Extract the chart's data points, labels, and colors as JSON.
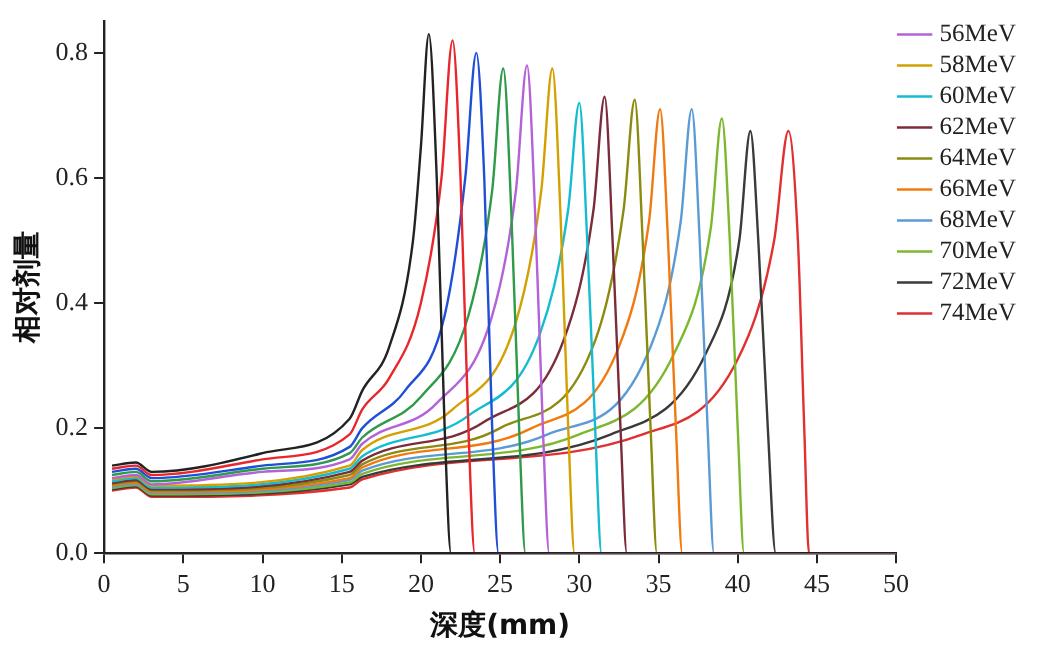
{
  "chart_data": {
    "type": "line",
    "xlabel": "深度(mm)",
    "ylabel": "相对剂量",
    "xlim": [
      0,
      50
    ],
    "xticks": [
      0,
      5,
      10,
      15,
      20,
      25,
      30,
      35,
      40,
      45,
      50
    ],
    "ylim": [
      0,
      0.85
    ],
    "yticks": [
      {
        "value": 0,
        "label": "0.0"
      },
      0.2,
      0.4,
      0.6,
      0.8
    ],
    "grid": false,
    "legend": "top right",
    "marker": "none",
    "line_style": "solid",
    "series": [
      {
        "color": "#222222",
        "x": [
          0.5,
          2,
          3,
          10,
          15.5,
          16.3,
          18,
          19.5,
          20,
          20.5,
          21,
          21.5,
          21.9,
          50
        ],
        "values": [
          0.14,
          0.145,
          0.13,
          0.16,
          0.215,
          0.26,
          0.33,
          0.5,
          0.65,
          0.83,
          0.6,
          0.2,
          0,
          0
        ]
      },
      {
        "color": "#e8262b",
        "x": [
          0.5,
          2,
          3,
          10,
          15.5,
          16.3,
          18,
          20,
          21.3,
          22,
          22.5,
          23,
          23.4,
          50
        ],
        "values": [
          0.135,
          0.14,
          0.125,
          0.15,
          0.19,
          0.23,
          0.28,
          0.4,
          0.6,
          0.82,
          0.6,
          0.2,
          0,
          0
        ]
      },
      {
        "color": "#1f4fd6",
        "x": [
          0.5,
          2,
          3,
          10,
          15.5,
          16.3,
          19,
          21.5,
          22.8,
          23.5,
          24,
          24.5,
          24.9,
          50
        ],
        "values": [
          0.13,
          0.135,
          0.12,
          0.14,
          0.17,
          0.2,
          0.26,
          0.38,
          0.6,
          0.8,
          0.6,
          0.2,
          0,
          0
        ]
      },
      {
        "color": "#2e9a4a",
        "x": [
          0.5,
          2,
          3,
          10,
          15.5,
          16.3,
          20,
          23,
          24.5,
          25.2,
          25.7,
          26.2,
          26.6,
          50
        ],
        "values": [
          0.125,
          0.13,
          0.115,
          0.135,
          0.16,
          0.185,
          0.25,
          0.38,
          0.58,
          0.775,
          0.55,
          0.2,
          0,
          0
        ]
      },
      {
        "name": "56MeV",
        "color": "#b362d8",
        "x": [
          0.5,
          2,
          3,
          10,
          15.5,
          16.3,
          21,
          24.5,
          26,
          26.7,
          27.2,
          27.7,
          28.1,
          50
        ],
        "values": [
          0.12,
          0.125,
          0.11,
          0.13,
          0.15,
          0.175,
          0.24,
          0.38,
          0.58,
          0.78,
          0.55,
          0.2,
          0,
          0
        ]
      },
      {
        "name": "58MeV",
        "color": "#d4a000",
        "x": [
          0.5,
          2,
          3,
          15.5,
          16.3,
          22,
          26,
          27.6,
          28.3,
          28.8,
          29.3,
          29.7,
          50
        ],
        "values": [
          0.118,
          0.123,
          0.108,
          0.14,
          0.165,
          0.23,
          0.37,
          0.58,
          0.775,
          0.55,
          0.2,
          0,
          0
        ]
      },
      {
        "name": "60MeV",
        "color": "#14bcd0",
        "x": [
          0.5,
          2,
          3,
          15.5,
          16.3,
          23,
          27.5,
          29.3,
          30,
          30.5,
          31,
          31.4,
          50
        ],
        "values": [
          0.115,
          0.12,
          0.105,
          0.135,
          0.155,
          0.22,
          0.35,
          0.55,
          0.72,
          0.5,
          0.2,
          0,
          0
        ]
      },
      {
        "name": "62MeV",
        "color": "#7b2c3a",
        "x": [
          0.5,
          2,
          3,
          15.5,
          16.3,
          24,
          29,
          30.9,
          31.6,
          32.1,
          32.6,
          33,
          50
        ],
        "values": [
          0.112,
          0.117,
          0.102,
          0.13,
          0.148,
          0.21,
          0.34,
          0.55,
          0.73,
          0.5,
          0.2,
          0,
          0
        ]
      },
      {
        "name": "64MeV",
        "color": "#8b8b10",
        "x": [
          0.5,
          2,
          3,
          15.5,
          16.3,
          25,
          31,
          32.8,
          33.5,
          34,
          34.5,
          34.9,
          50
        ],
        "values": [
          0.11,
          0.115,
          0.1,
          0.125,
          0.142,
          0.2,
          0.34,
          0.55,
          0.725,
          0.5,
          0.2,
          0,
          0
        ]
      },
      {
        "name": "66MeV",
        "color": "#f07a10",
        "x": [
          0.5,
          2,
          3,
          15.5,
          16.3,
          27,
          32.5,
          34.4,
          35.1,
          35.6,
          36.1,
          36.5,
          50
        ],
        "values": [
          0.108,
          0.113,
          0.098,
          0.12,
          0.137,
          0.2,
          0.33,
          0.53,
          0.71,
          0.5,
          0.2,
          0,
          0
        ]
      },
      {
        "name": "68MeV",
        "color": "#5b9bd5",
        "x": [
          0.5,
          2,
          3,
          15.5,
          16.3,
          28,
          34.5,
          36.4,
          37.1,
          37.6,
          38.1,
          38.5,
          50
        ],
        "values": [
          0.106,
          0.111,
          0.096,
          0.117,
          0.132,
          0.19,
          0.33,
          0.53,
          0.71,
          0.5,
          0.2,
          0,
          0
        ]
      },
      {
        "name": "70MeV",
        "color": "#7cb82f",
        "x": [
          0.5,
          2,
          3,
          15.5,
          16.3,
          30,
          36,
          38.3,
          39,
          39.5,
          40,
          40.4,
          50
        ],
        "values": [
          0.104,
          0.109,
          0.094,
          0.113,
          0.127,
          0.19,
          0.32,
          0.52,
          0.695,
          0.5,
          0.2,
          0,
          0
        ]
      },
      {
        "name": "72MeV",
        "color": "#3a3a3a",
        "x": [
          0.5,
          2,
          3,
          15.5,
          16.3,
          32,
          38,
          40.1,
          40.8,
          41.3,
          41.9,
          42.4,
          50
        ],
        "values": [
          0.102,
          0.107,
          0.092,
          0.11,
          0.122,
          0.19,
          0.32,
          0.5,
          0.675,
          0.5,
          0.2,
          0,
          0
        ]
      },
      {
        "name": "74MeV",
        "color": "#e03030",
        "x": [
          0.5,
          2,
          3,
          15.5,
          16.3,
          34,
          40,
          42.3,
          43.2,
          43.8,
          44.2,
          44.5,
          50
        ],
        "values": [
          0.1,
          0.105,
          0.09,
          0.105,
          0.118,
          0.19,
          0.31,
          0.5,
          0.675,
          0.5,
          0.2,
          0,
          0
        ]
      }
    ]
  }
}
